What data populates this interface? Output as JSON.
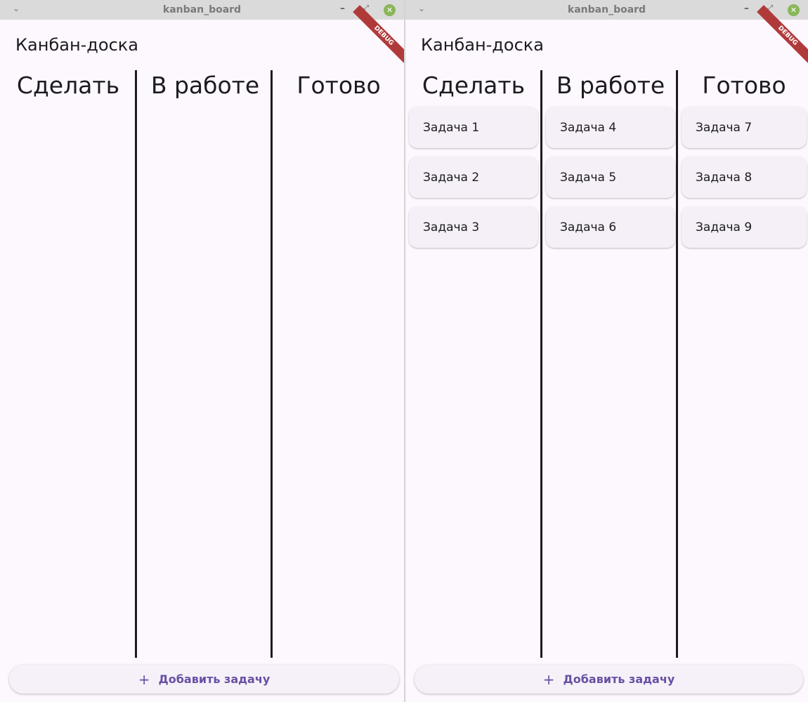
{
  "windows": [
    {
      "title": "kanban_board",
      "debug": "DEBUG",
      "app_title": "Канбан-доска",
      "columns": [
        {
          "title": "Сделать",
          "cards": []
        },
        {
          "title": "В работе",
          "cards": []
        },
        {
          "title": "Готово",
          "cards": []
        }
      ],
      "add_button": "Добавить задачу"
    },
    {
      "title": "kanban_board",
      "debug": "DEBUG",
      "app_title": "Канбан-доска",
      "columns": [
        {
          "title": "Сделать",
          "cards": [
            "Задача 1",
            "Задача 2",
            "Задача 3"
          ]
        },
        {
          "title": "В работе",
          "cards": [
            "Задача 4",
            "Задача 5",
            "Задача 6"
          ]
        },
        {
          "title": "Готово",
          "cards": [
            "Задача 7",
            "Задача 8",
            "Задача 9"
          ]
        }
      ],
      "add_button": "Добавить задачу"
    }
  ],
  "icons": {
    "menu": "chevron-down-icon",
    "minimize": "minimize-icon",
    "maximize": "maximize-icon",
    "close": "close-icon",
    "add": "plus-icon"
  },
  "colors": {
    "accent": "#6750a4",
    "background": "#fdf7fe",
    "card": "#f5f0f7",
    "close": "#8ab65a",
    "debug_banner": "#b03a3a"
  }
}
